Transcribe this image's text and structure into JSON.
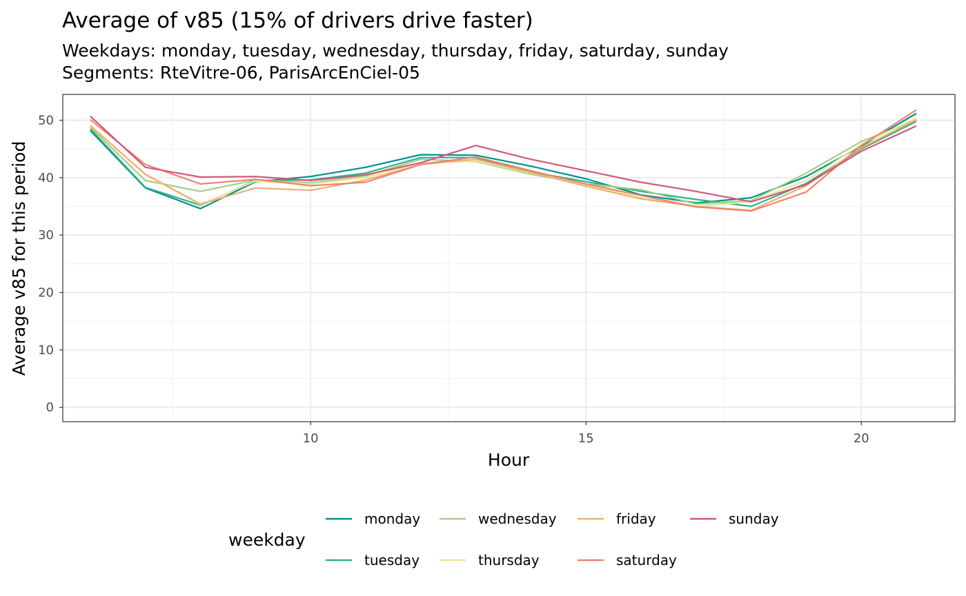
{
  "chart_data": {
    "type": "line",
    "title": "Average of v85 (15% of drivers drive faster)",
    "subtitle_lines": [
      "Weekdays: monday, tuesday, wednesday, thursday, friday, saturday, sunday",
      "Segments: RteVitre-06, ParisArcEnCiel-05"
    ],
    "xlabel": "Hour",
    "ylabel": "Average v85 for this period",
    "xlim": [
      5.5,
      21.7
    ],
    "ylim": [
      -2.5,
      54.5
    ],
    "x_ticks": [
      10,
      15,
      20
    ],
    "y_ticks": [
      0,
      10,
      20,
      30,
      40,
      50
    ],
    "grid": true,
    "legend_title": "weekday",
    "legend_position": "bottom",
    "x": [
      6,
      7,
      8,
      9,
      10,
      11,
      12,
      13,
      14,
      15,
      16,
      17,
      18,
      19,
      20,
      21
    ],
    "series": [
      {
        "name": "monday",
        "color": "#00918d",
        "values": [
          48.2,
          38.2,
          34.6,
          39.3,
          40.2,
          41.8,
          44.0,
          43.9,
          42.0,
          39.8,
          37.0,
          35.6,
          36.5,
          40.2,
          45.5,
          51.2
        ]
      },
      {
        "name": "tuesday",
        "color": "#2eb08a",
        "values": [
          48.5,
          38.3,
          35.2,
          39.5,
          39.6,
          40.8,
          43.5,
          43.5,
          41.0,
          39.3,
          37.6,
          36.2,
          35.0,
          39.0,
          45.0,
          49.8
        ]
      },
      {
        "name": "wednesday",
        "color": "#a1cf86",
        "values": [
          48.8,
          39.5,
          37.6,
          39.6,
          39.1,
          40.3,
          43.2,
          42.8,
          40.6,
          38.9,
          37.9,
          35.4,
          36.0,
          40.8,
          46.3,
          50.0
        ]
      },
      {
        "name": "thursday",
        "color": "#ede59a",
        "values": [
          49.2,
          40.5,
          35.3,
          39.4,
          38.9,
          40.0,
          42.6,
          42.9,
          40.8,
          38.8,
          36.5,
          35.0,
          35.8,
          39.5,
          45.8,
          50.4
        ]
      },
      {
        "name": "friday",
        "color": "#f2ad70",
        "values": [
          49.0,
          40.6,
          35.4,
          38.2,
          37.8,
          39.6,
          42.3,
          43.2,
          40.9,
          38.5,
          36.3,
          35.0,
          34.3,
          38.6,
          45.2,
          50.1
        ]
      },
      {
        "name": "saturday",
        "color": "#ea846e",
        "values": [
          50.1,
          42.3,
          38.9,
          39.7,
          38.6,
          39.2,
          42.3,
          43.6,
          41.2,
          38.9,
          36.9,
          34.9,
          34.2,
          37.5,
          45.6,
          51.8
        ]
      },
      {
        "name": "sunday",
        "color": "#d1577c",
        "values": [
          50.7,
          41.8,
          40.1,
          40.2,
          39.5,
          40.5,
          42.6,
          45.6,
          43.2,
          41.2,
          39.2,
          37.6,
          35.8,
          38.8,
          44.6,
          49.0
        ]
      }
    ]
  }
}
